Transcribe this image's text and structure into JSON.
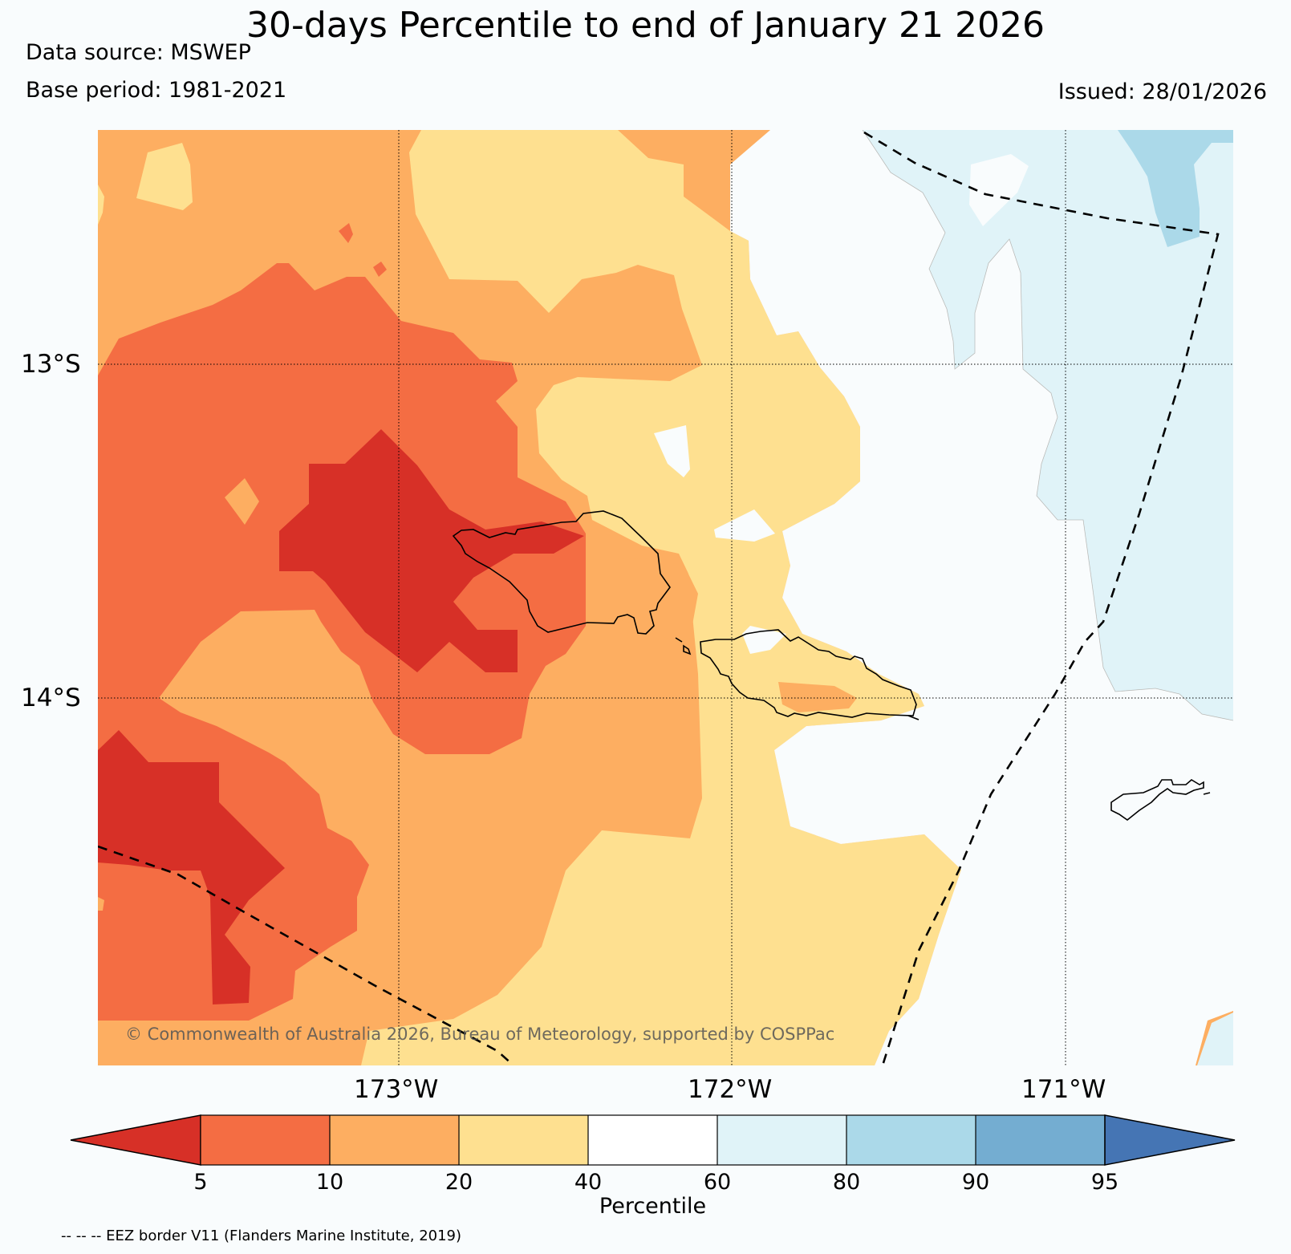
{
  "title": "30-days Percentile to end of January 21 2026",
  "data_source": "Data source: MSWEP",
  "base_period": "Base period: 1981-2021",
  "issued": "Issued: 28/01/2026",
  "copyright": "© Commonwealth of Australia 2026, Bureau of Meteorology, supported by COSPPac",
  "eez_note": "-- -- -- EEZ border V11 (Flanders Marine Institute, 2019)",
  "map": {
    "lat_labels": [
      "13°S",
      "14°S"
    ],
    "lon_labels": [
      "173°W",
      "172°W",
      "171°W"
    ]
  },
  "colorbar": {
    "title": "Percentile",
    "ticks": [
      "5",
      "10",
      "20",
      "40",
      "60",
      "80",
      "90",
      "95"
    ],
    "colors": [
      "#d73027",
      "#f46d43",
      "#fdae61",
      "#fee090",
      "#ffffff",
      "#e0f3f8",
      "#abd9e9",
      "#74add1",
      "#4575b4"
    ]
  },
  "palette": {
    "p0_5": "#d73027",
    "p5_10": "#f46d43",
    "p10_20": "#fdae61",
    "p20_40": "#fee090",
    "p40_60": "#f9fcfd",
    "p60_80": "#e0f3f8",
    "p80_90": "#abd9e9"
  }
}
